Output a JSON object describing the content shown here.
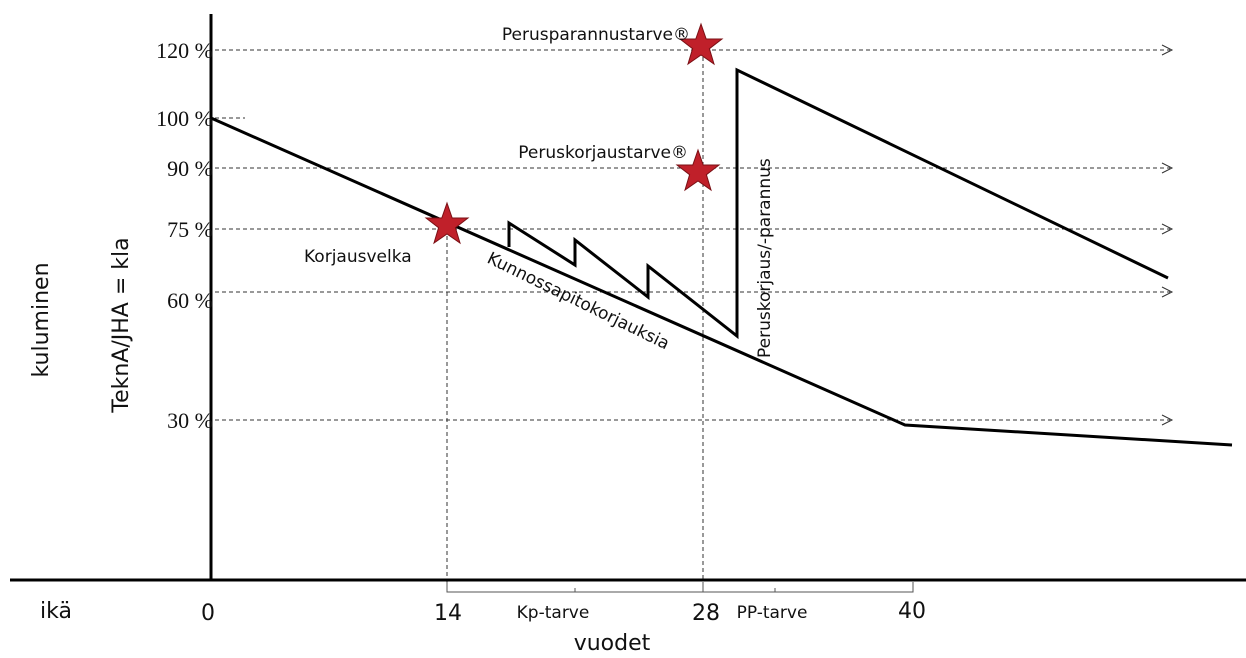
{
  "axis_labels": {
    "y_outer": "kuluminen",
    "y_inner": "TeknA/JHA = kla",
    "x_left": "ikä",
    "x_bottom": "vuodet"
  },
  "y_levels": [
    "120 %",
    "100 %",
    "90 %",
    "75 %",
    "60 %",
    "30 %"
  ],
  "x_ticks": [
    "0",
    "14",
    "28",
    "40"
  ],
  "spans": [
    "Kp-tarve",
    "PP-tarve"
  ],
  "annotations": {
    "perusparannus": "Perusparannustarve®",
    "peruskorjaus": "Peruskorjaustarve®",
    "korjausvelka": "Korjausvelka",
    "kunnossapito": "Kunnossapitokorjauksia",
    "vertical": "Peruskorjaus/-parannus"
  }
}
